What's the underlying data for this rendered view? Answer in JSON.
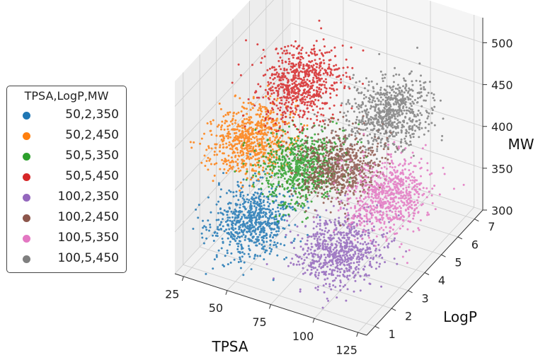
{
  "chart_data": {
    "type": "scatter",
    "projection": "3d",
    "x_label": "TPSA",
    "y_label": "LogP",
    "z_label": "MW",
    "x_ticks": [
      25,
      50,
      75,
      100,
      125
    ],
    "y_ticks": [
      1,
      2,
      3,
      4,
      5,
      6,
      7
    ],
    "z_ticks": [
      300,
      350,
      400,
      450,
      500
    ],
    "x_range": [
      20,
      130
    ],
    "y_range": [
      0.5,
      7.5
    ],
    "z_range": [
      300,
      530
    ],
    "grid": true,
    "legend": {
      "title": "TPSA,LogP,MW",
      "placement": "left"
    },
    "series": [
      {
        "name": "50,2,350",
        "color": "#1f77b4",
        "center": [
          50,
          2,
          350
        ],
        "spread": [
          10,
          0.7,
          14
        ]
      },
      {
        "name": "50,2,450",
        "color": "#ff7f0e",
        "center": [
          50,
          2,
          450
        ],
        "spread": [
          10,
          0.7,
          14
        ]
      },
      {
        "name": "50,5,350",
        "color": "#2ca02c",
        "center": [
          50,
          5,
          350
        ],
        "spread": [
          10,
          0.7,
          14
        ]
      },
      {
        "name": "50,5,450",
        "color": "#d62728",
        "center": [
          50,
          5,
          450
        ],
        "spread": [
          10,
          0.7,
          14
        ]
      },
      {
        "name": "100,2,350",
        "color": "#9467bd",
        "center": [
          100,
          2,
          350
        ],
        "spread": [
          10,
          0.7,
          14
        ]
      },
      {
        "name": "100,2,450",
        "color": "#8c564b",
        "center": [
          100,
          2,
          450
        ],
        "spread": [
          10,
          0.7,
          14
        ]
      },
      {
        "name": "100,5,350",
        "color": "#e377c2",
        "center": [
          100,
          5,
          350
        ],
        "spread": [
          10,
          0.7,
          14
        ]
      },
      {
        "name": "100,5,450",
        "color": "#7f7f7f",
        "center": [
          100,
          5,
          450
        ],
        "spread": [
          10,
          0.7,
          14
        ]
      }
    ]
  }
}
